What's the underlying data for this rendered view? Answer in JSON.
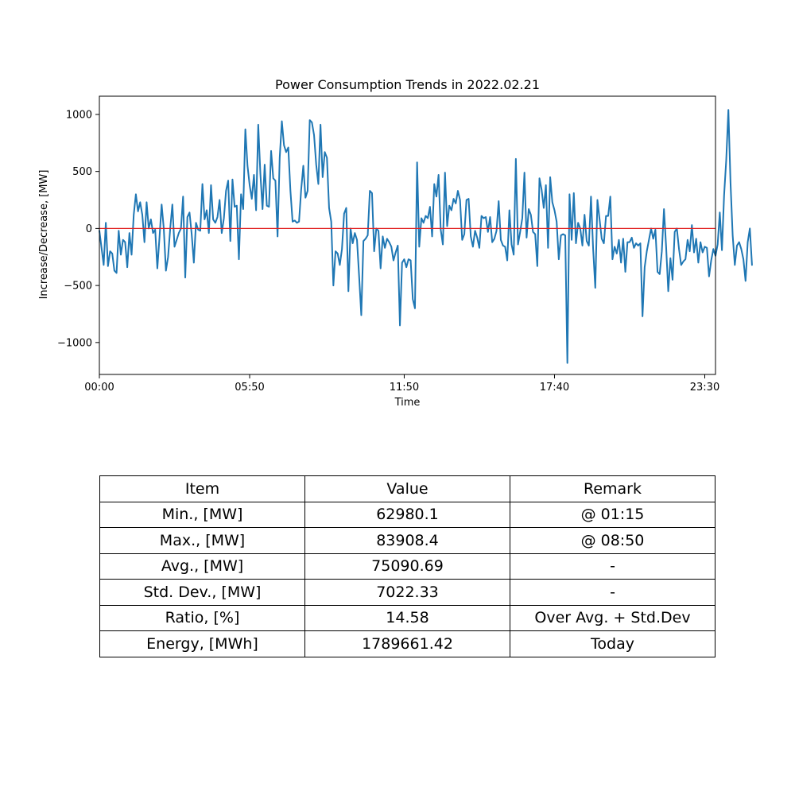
{
  "chart_data": {
    "type": "line",
    "title": "Power Consumption Trends in 2022.02.21",
    "xlabel": "Time",
    "ylabel": "Increase/Decrease, [MW]",
    "x_unit_minutes_per_point": 5,
    "x_range_minutes": [
      0,
      1435
    ],
    "xticks": [
      {
        "minute": 0,
        "label": "00:00"
      },
      {
        "minute": 350,
        "label": "05:50"
      },
      {
        "minute": 710,
        "label": "11:50"
      },
      {
        "minute": 1060,
        "label": "17:40"
      },
      {
        "minute": 1410,
        "label": "23:30"
      }
    ],
    "yticks": [
      1000,
      500,
      0,
      -500,
      -1000
    ],
    "ylim": [
      -1280,
      1160
    ],
    "reference_line": {
      "y": 0,
      "color": "#e02020"
    },
    "series_color": "#1f77b4",
    "series": [
      {
        "values": [
          -20,
          -170,
          -320,
          50,
          -330,
          -200,
          -220,
          -370,
          -390,
          -20,
          -230,
          -100,
          -120,
          -340,
          -40,
          -230,
          120,
          300,
          150,
          230,
          120,
          -120,
          230,
          0,
          80,
          -40,
          -10,
          -350,
          -80,
          210,
          0,
          -370,
          -250,
          0,
          210,
          -160,
          -100,
          -40,
          0,
          280,
          -430,
          100,
          140,
          -50,
          -300,
          50,
          -10,
          -20,
          390,
          80,
          160,
          -40,
          380,
          80,
          50,
          100,
          250,
          -40,
          90,
          330,
          420,
          -110,
          430,
          190,
          200,
          -270,
          300,
          170,
          870,
          550,
          380,
          260,
          470,
          160,
          910,
          480,
          170,
          560,
          200,
          190,
          680,
          440,
          420,
          -70,
          620,
          940,
          730,
          670,
          710,
          330,
          60,
          70,
          50,
          60,
          340,
          550,
          270,
          330,
          950,
          930,
          820,
          560,
          390,
          910,
          450,
          670,
          620,
          180,
          60,
          -500,
          -200,
          -220,
          -320,
          -180,
          130,
          180,
          -550,
          0,
          -130,
          -40,
          -100,
          -420,
          -760,
          -110,
          -90,
          -60,
          330,
          310,
          -200,
          0,
          -20,
          -350,
          -70,
          -170,
          -90,
          -120,
          -160,
          -280,
          -210,
          -150,
          -850,
          -300,
          -270,
          -340,
          -270,
          -280,
          -620,
          -700,
          580,
          -160,
          90,
          50,
          110,
          90,
          190,
          -70,
          390,
          280,
          470,
          -10,
          -140,
          490,
          20,
          200,
          160,
          260,
          220,
          330,
          250,
          -100,
          -50,
          250,
          260,
          -70,
          -160,
          -20,
          -80,
          -170,
          110,
          90,
          100,
          -30,
          100,
          -120,
          -90,
          -20,
          240,
          -100,
          -150,
          -160,
          -280,
          160,
          -140,
          -230,
          610,
          -140,
          -30,
          90,
          490,
          -80,
          170,
          120,
          -30,
          -50,
          -330,
          440,
          340,
          180,
          380,
          -170,
          450,
          230,
          160,
          60,
          -270,
          -60,
          -50,
          -60,
          -1180,
          300,
          -100,
          310,
          -130,
          50,
          0,
          -150,
          120,
          -110,
          -150,
          280,
          -180,
          -520,
          250,
          80,
          -90,
          -130,
          110,
          110,
          280,
          -270,
          -160,
          -220,
          -100,
          -300,
          -90,
          -380,
          -120,
          -120,
          -80,
          -170,
          -130,
          -150,
          -130,
          -770,
          -340,
          -200,
          -100,
          0,
          -90,
          -10,
          -380,
          -400,
          -200,
          170,
          -160,
          -550,
          -260,
          -450,
          -30,
          0,
          -180,
          -320,
          -290,
          -270,
          -100,
          -200,
          30,
          -210,
          -90,
          -300,
          -120,
          -210,
          -160,
          -170,
          -420,
          -280,
          -180,
          -240,
          -140,
          140,
          -190,
          290,
          600,
          1040,
          400,
          -60,
          -320,
          -150,
          -120,
          -180,
          -270,
          -460,
          -120,
          0,
          -320
        ]
      }
    ]
  },
  "table": {
    "headers": [
      "Item",
      "Value",
      "Remark"
    ],
    "rows": [
      [
        "Min., [MW]",
        "62980.1",
        "@ 01:15"
      ],
      [
        "Max., [MW]",
        "83908.4",
        "@ 08:50"
      ],
      [
        "Avg., [MW]",
        "75090.69",
        "-"
      ],
      [
        "Std. Dev., [MW]",
        "7022.33",
        "-"
      ],
      [
        "Ratio, [%]",
        "14.58",
        "Over Avg. + Std.Dev"
      ],
      [
        "Energy, [MWh]",
        "1789661.42",
        "Today"
      ]
    ]
  }
}
